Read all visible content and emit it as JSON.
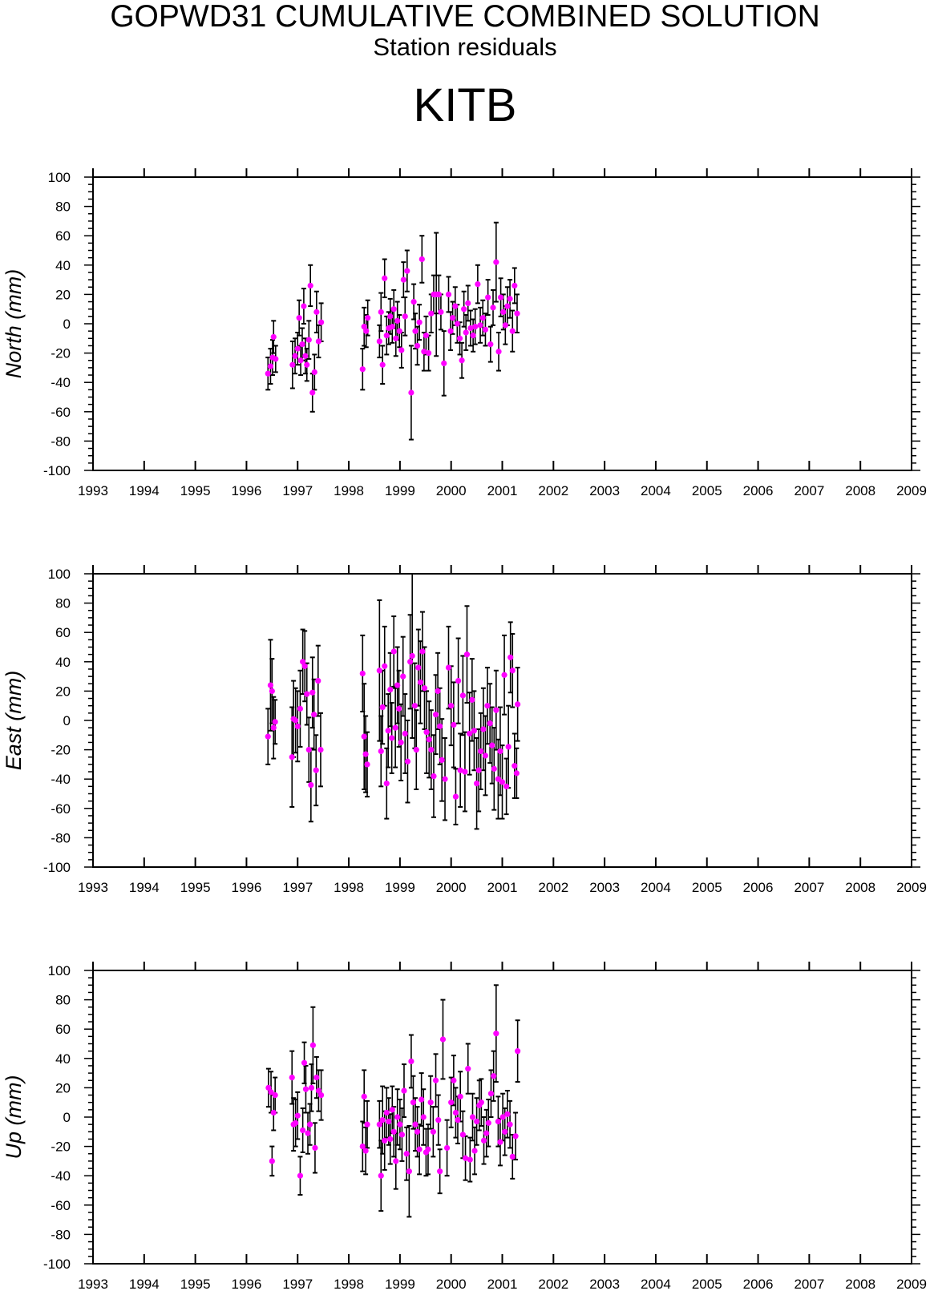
{
  "header": {
    "title": "GOPWD31 CUMULATIVE COMBINED SOLUTION",
    "subtitle": "Station residuals",
    "station": "KITB"
  },
  "colors": {
    "marker": "#ff00ff",
    "errorbar": "#000000",
    "axis": "#000000"
  },
  "chart_data": [
    {
      "type": "scatter",
      "ylabel": "North (mm)",
      "xlim": [
        1993,
        2009
      ],
      "ylim": [
        -100,
        100
      ],
      "x_ticks": [
        "1993",
        "1994",
        "1995",
        "1996",
        "1997",
        "1998",
        "1999",
        "2000",
        "2001",
        "2002",
        "2003",
        "2004",
        "2005",
        "2006",
        "2007",
        "2008",
        "2009"
      ],
      "y_ticks": [
        "100",
        "80",
        "60",
        "40",
        "20",
        "0",
        "-20",
        "-40",
        "-60",
        "-80",
        "-100"
      ],
      "grid": false,
      "legend": "none",
      "points": [
        [
          1996.42,
          -34,
          11
        ],
        [
          1996.47,
          -29,
          12
        ],
        [
          1996.51,
          -23,
          12
        ],
        [
          1996.53,
          -9,
          11
        ],
        [
          1996.57,
          -24,
          9
        ],
        [
          1996.9,
          -28,
          16
        ],
        [
          1996.95,
          -22,
          12
        ],
        [
          1997.0,
          -17,
          11
        ],
        [
          1997.03,
          4,
          12
        ],
        [
          1997.06,
          -25,
          10
        ],
        [
          1997.09,
          -14,
          11
        ],
        [
          1997.12,
          12,
          12
        ],
        [
          1997.15,
          -22,
          12
        ],
        [
          1997.18,
          -28,
          11
        ],
        [
          1997.22,
          -11,
          13
        ],
        [
          1997.25,
          26,
          14
        ],
        [
          1997.29,
          -47,
          13
        ],
        [
          1997.33,
          -33,
          12
        ],
        [
          1997.37,
          8,
          14
        ],
        [
          1997.41,
          -12,
          11
        ],
        [
          1997.46,
          1,
          13
        ],
        [
          1998.27,
          -31,
          14
        ],
        [
          1998.3,
          -2,
          13
        ],
        [
          1998.34,
          -5,
          11
        ],
        [
          1998.37,
          4,
          12
        ],
        [
          1998.6,
          -12,
          11
        ],
        [
          1998.63,
          8,
          13
        ],
        [
          1998.66,
          -28,
          13
        ],
        [
          1998.7,
          31,
          13
        ],
        [
          1998.74,
          -8,
          13
        ],
        [
          1998.78,
          -3,
          11
        ],
        [
          1998.81,
          5,
          12
        ],
        [
          1998.85,
          -2,
          11
        ],
        [
          1998.88,
          10,
          13
        ],
        [
          1998.92,
          -10,
          12
        ],
        [
          1998.95,
          2,
          13
        ],
        [
          1998.99,
          -5,
          11
        ],
        [
          1999.03,
          -18,
          12
        ],
        [
          1999.07,
          30,
          12
        ],
        [
          1999.1,
          5,
          13
        ],
        [
          1999.14,
          36,
          14
        ],
        [
          1999.22,
          -47,
          32
        ],
        [
          1999.27,
          15,
          12
        ],
        [
          1999.3,
          -5,
          12
        ],
        [
          1999.34,
          -15,
          13
        ],
        [
          1999.38,
          1,
          12
        ],
        [
          1999.43,
          44,
          16
        ],
        [
          1999.47,
          -19,
          13
        ],
        [
          1999.51,
          -8,
          13
        ],
        [
          1999.56,
          -20,
          12
        ],
        [
          1999.61,
          7,
          13
        ],
        [
          1999.66,
          20,
          13
        ],
        [
          1999.71,
          20,
          42
        ],
        [
          1999.76,
          20,
          13
        ],
        [
          1999.8,
          8,
          12
        ],
        [
          1999.86,
          -27,
          22
        ],
        [
          1999.95,
          20,
          12
        ],
        [
          1999.99,
          -5,
          13
        ],
        [
          2000.03,
          4,
          11
        ],
        [
          2000.08,
          12,
          13
        ],
        [
          2000.12,
          0,
          13
        ],
        [
          2000.17,
          -10,
          11
        ],
        [
          2000.21,
          -25,
          12
        ],
        [
          2000.25,
          10,
          12
        ],
        [
          2000.29,
          -6,
          12
        ],
        [
          2000.33,
          14,
          12
        ],
        [
          2000.38,
          -3,
          12
        ],
        [
          2000.43,
          -8,
          11
        ],
        [
          2000.47,
          -2,
          12
        ],
        [
          2000.52,
          27,
          13
        ],
        [
          2000.57,
          -1,
          12
        ],
        [
          2000.62,
          4,
          12
        ],
        [
          2000.67,
          -4,
          11
        ],
        [
          2000.72,
          18,
          12
        ],
        [
          2000.77,
          -14,
          12
        ],
        [
          2000.82,
          11,
          12
        ],
        [
          2000.88,
          42,
          27
        ],
        [
          2000.93,
          -19,
          13
        ],
        [
          2000.97,
          18,
          13
        ],
        [
          2001.02,
          8,
          12
        ],
        [
          2001.06,
          -1,
          13
        ],
        [
          2001.1,
          12,
          13
        ],
        [
          2001.15,
          17,
          13
        ],
        [
          2001.2,
          -5,
          14
        ],
        [
          2001.24,
          26,
          12
        ],
        [
          2001.29,
          7,
          13
        ]
      ]
    },
    {
      "type": "scatter",
      "ylabel": "East (mm)",
      "xlim": [
        1993,
        2009
      ],
      "ylim": [
        -100,
        100
      ],
      "x_ticks": [
        "1993",
        "1994",
        "1995",
        "1996",
        "1997",
        "1998",
        "1999",
        "2000",
        "2001",
        "2002",
        "2003",
        "2004",
        "2005",
        "2006",
        "2007",
        "2008",
        "2009"
      ],
      "y_ticks": [
        "100",
        "80",
        "60",
        "40",
        "20",
        "0",
        "-20",
        "-40",
        "-60",
        "-80",
        "-100"
      ],
      "grid": false,
      "legend": "none",
      "points": [
        [
          1996.42,
          -11,
          19
        ],
        [
          1996.47,
          24,
          31
        ],
        [
          1996.5,
          20,
          22
        ],
        [
          1996.53,
          -5,
          21
        ],
        [
          1996.56,
          -1,
          15
        ],
        [
          1996.89,
          -25,
          34
        ],
        [
          1996.92,
          1,
          26
        ],
        [
          1996.96,
          0,
          22
        ],
        [
          1997.0,
          -4,
          24
        ],
        [
          1997.05,
          8,
          26
        ],
        [
          1997.1,
          40,
          22
        ],
        [
          1997.14,
          37,
          24
        ],
        [
          1997.18,
          18,
          21
        ],
        [
          1997.22,
          -20,
          22
        ],
        [
          1997.26,
          -44,
          25
        ],
        [
          1997.29,
          19,
          24
        ],
        [
          1997.32,
          4,
          24
        ],
        [
          1997.36,
          -34,
          24
        ],
        [
          1997.4,
          27,
          24
        ],
        [
          1997.45,
          -20,
          25
        ],
        [
          1998.27,
          32,
          26
        ],
        [
          1998.3,
          -11,
          36
        ],
        [
          1998.33,
          -23,
          26
        ],
        [
          1998.36,
          -30,
          22
        ],
        [
          1998.6,
          34,
          48
        ],
        [
          1998.63,
          -21,
          24
        ],
        [
          1998.66,
          9,
          25
        ],
        [
          1998.7,
          37,
          27
        ],
        [
          1998.74,
          -43,
          24
        ],
        [
          1998.77,
          -7,
          25
        ],
        [
          1998.81,
          21,
          25
        ],
        [
          1998.84,
          -12,
          24
        ],
        [
          1998.88,
          47,
          24
        ],
        [
          1998.91,
          -5,
          27
        ],
        [
          1998.95,
          24,
          26
        ],
        [
          1998.98,
          8,
          26
        ],
        [
          1999.02,
          -15,
          26
        ],
        [
          1999.06,
          30,
          27
        ],
        [
          1999.1,
          -9,
          27
        ],
        [
          1999.15,
          -28,
          28
        ],
        [
          1999.2,
          40,
          32
        ],
        [
          1999.24,
          44,
          56
        ],
        [
          1999.29,
          10,
          29
        ],
        [
          1999.32,
          -20,
          27
        ],
        [
          1999.36,
          36,
          26
        ],
        [
          1999.4,
          26,
          28
        ],
        [
          1999.44,
          47,
          27
        ],
        [
          1999.48,
          22,
          28
        ],
        [
          1999.52,
          -8,
          28
        ],
        [
          1999.57,
          -13,
          26
        ],
        [
          1999.61,
          -20,
          27
        ],
        [
          1999.66,
          -38,
          28
        ],
        [
          1999.7,
          4,
          27
        ],
        [
          1999.74,
          20,
          26
        ],
        [
          1999.78,
          -4,
          26
        ],
        [
          1999.82,
          -27,
          28
        ],
        [
          1999.88,
          -40,
          28
        ],
        [
          1999.95,
          36,
          28
        ],
        [
          2000.0,
          10,
          27
        ],
        [
          2000.05,
          -3,
          29
        ],
        [
          2000.09,
          -52,
          19
        ],
        [
          2000.14,
          27,
          29
        ],
        [
          2000.18,
          -34,
          25
        ],
        [
          2000.23,
          17,
          27
        ],
        [
          2000.27,
          -35,
          27
        ],
        [
          2000.31,
          45,
          33
        ],
        [
          2000.36,
          -9,
          28
        ],
        [
          2000.41,
          14,
          28
        ],
        [
          2000.45,
          -7,
          27
        ],
        [
          2000.5,
          -43,
          31
        ],
        [
          2000.54,
          -34,
          28
        ],
        [
          2000.58,
          -21,
          26
        ],
        [
          2000.63,
          -6,
          28
        ],
        [
          2000.67,
          -24,
          27
        ],
        [
          2000.71,
          10,
          26
        ],
        [
          2000.76,
          -2,
          27
        ],
        [
          2000.8,
          -17,
          26
        ],
        [
          2000.84,
          -33,
          28
        ],
        [
          2000.88,
          7,
          27
        ],
        [
          2000.92,
          -40,
          27
        ],
        [
          2000.96,
          -21,
          30
        ],
        [
          2001.0,
          -42,
          25
        ],
        [
          2001.04,
          31,
          27
        ],
        [
          2001.08,
          -45,
          19
        ],
        [
          2001.12,
          -18,
          28
        ],
        [
          2001.16,
          43,
          24
        ],
        [
          2001.2,
          34,
          25
        ],
        [
          2001.24,
          -31,
          22
        ],
        [
          2001.28,
          -36,
          17
        ],
        [
          2001.3,
          11,
          25
        ]
      ]
    },
    {
      "type": "scatter",
      "ylabel": "Up (mm)",
      "xlim": [
        1993,
        2009
      ],
      "ylim": [
        -100,
        100
      ],
      "x_ticks": [
        "1993",
        "1994",
        "1995",
        "1996",
        "1997",
        "1998",
        "1999",
        "2000",
        "2001",
        "2002",
        "2003",
        "2004",
        "2005",
        "2006",
        "2007",
        "2008",
        "2009"
      ],
      "y_ticks": [
        "100",
        "80",
        "60",
        "40",
        "20",
        "0",
        "-20",
        "-40",
        "-60",
        "-80",
        "-100"
      ],
      "grid": false,
      "legend": "none",
      "points": [
        [
          1996.43,
          20,
          13
        ],
        [
          1996.48,
          17,
          14
        ],
        [
          1996.5,
          -30,
          10
        ],
        [
          1996.53,
          3,
          12
        ],
        [
          1996.56,
          15,
          12
        ],
        [
          1996.89,
          27,
          18
        ],
        [
          1996.92,
          -5,
          18
        ],
        [
          1996.96,
          -4,
          16
        ],
        [
          1997.0,
          1,
          16
        ],
        [
          1997.05,
          -40,
          13
        ],
        [
          1997.1,
          -9,
          15
        ],
        [
          1997.13,
          37,
          14
        ],
        [
          1997.16,
          19,
          16
        ],
        [
          1997.2,
          -11,
          14
        ],
        [
          1997.24,
          -5,
          14
        ],
        [
          1997.27,
          20,
          16
        ],
        [
          1997.3,
          49,
          26
        ],
        [
          1997.34,
          -21,
          17
        ],
        [
          1997.37,
          27,
          14
        ],
        [
          1997.41,
          18,
          14
        ],
        [
          1997.46,
          15,
          17
        ],
        [
          1998.27,
          -20,
          17
        ],
        [
          1998.3,
          14,
          18
        ],
        [
          1998.33,
          -23,
          16
        ],
        [
          1998.36,
          -5,
          16
        ],
        [
          1998.6,
          -5,
          16
        ],
        [
          1998.63,
          -40,
          24
        ],
        [
          1998.66,
          -2,
          23
        ],
        [
          1998.7,
          -16,
          20
        ],
        [
          1998.74,
          3,
          17
        ],
        [
          1998.78,
          -3,
          16
        ],
        [
          1998.81,
          -15,
          17
        ],
        [
          1998.85,
          5,
          16
        ],
        [
          1998.88,
          -10,
          17
        ],
        [
          1998.92,
          -30,
          19
        ],
        [
          1998.95,
          0,
          19
        ],
        [
          1999.0,
          -5,
          17
        ],
        [
          1999.04,
          -12,
          18
        ],
        [
          1999.08,
          18,
          18
        ],
        [
          1999.13,
          -25,
          18
        ],
        [
          1999.18,
          -37,
          31
        ],
        [
          1999.22,
          38,
          18
        ],
        [
          1999.26,
          10,
          18
        ],
        [
          1999.3,
          -5,
          18
        ],
        [
          1999.34,
          -10,
          17
        ],
        [
          1999.38,
          -22,
          17
        ],
        [
          1999.42,
          12,
          18
        ],
        [
          1999.46,
          0,
          19
        ],
        [
          1999.51,
          -24,
          16
        ],
        [
          1999.55,
          -22,
          17
        ],
        [
          1999.6,
          10,
          18
        ],
        [
          1999.65,
          -10,
          17
        ],
        [
          1999.7,
          25,
          18
        ],
        [
          1999.75,
          -2,
          17
        ],
        [
          1999.78,
          -37,
          15
        ],
        [
          1999.84,
          53,
          27
        ],
        [
          1999.92,
          -21,
          19
        ],
        [
          2000.0,
          10,
          17
        ],
        [
          2000.05,
          25,
          17
        ],
        [
          2000.09,
          3,
          17
        ],
        [
          2000.13,
          -2,
          16
        ],
        [
          2000.18,
          14,
          17
        ],
        [
          2000.23,
          -12,
          16
        ],
        [
          2000.28,
          -28,
          15
        ],
        [
          2000.33,
          33,
          17
        ],
        [
          2000.37,
          -29,
          15
        ],
        [
          2000.42,
          0,
          16
        ],
        [
          2000.46,
          -23,
          16
        ],
        [
          2000.5,
          -3,
          16
        ],
        [
          2000.55,
          8,
          17
        ],
        [
          2000.59,
          10,
          16
        ],
        [
          2000.64,
          -16,
          16
        ],
        [
          2000.69,
          -11,
          16
        ],
        [
          2000.73,
          -4,
          16
        ],
        [
          2000.78,
          16,
          16
        ],
        [
          2000.83,
          28,
          17
        ],
        [
          2000.88,
          57,
          33
        ],
        [
          2000.92,
          -3,
          17
        ],
        [
          2000.96,
          -17,
          16
        ],
        [
          2001.01,
          0,
          16
        ],
        [
          2001.05,
          -10,
          16
        ],
        [
          2001.1,
          2,
          16
        ],
        [
          2001.15,
          -5,
          16
        ],
        [
          2001.2,
          -27,
          15
        ],
        [
          2001.26,
          -13,
          16
        ],
        [
          2001.3,
          45,
          21
        ]
      ]
    }
  ]
}
